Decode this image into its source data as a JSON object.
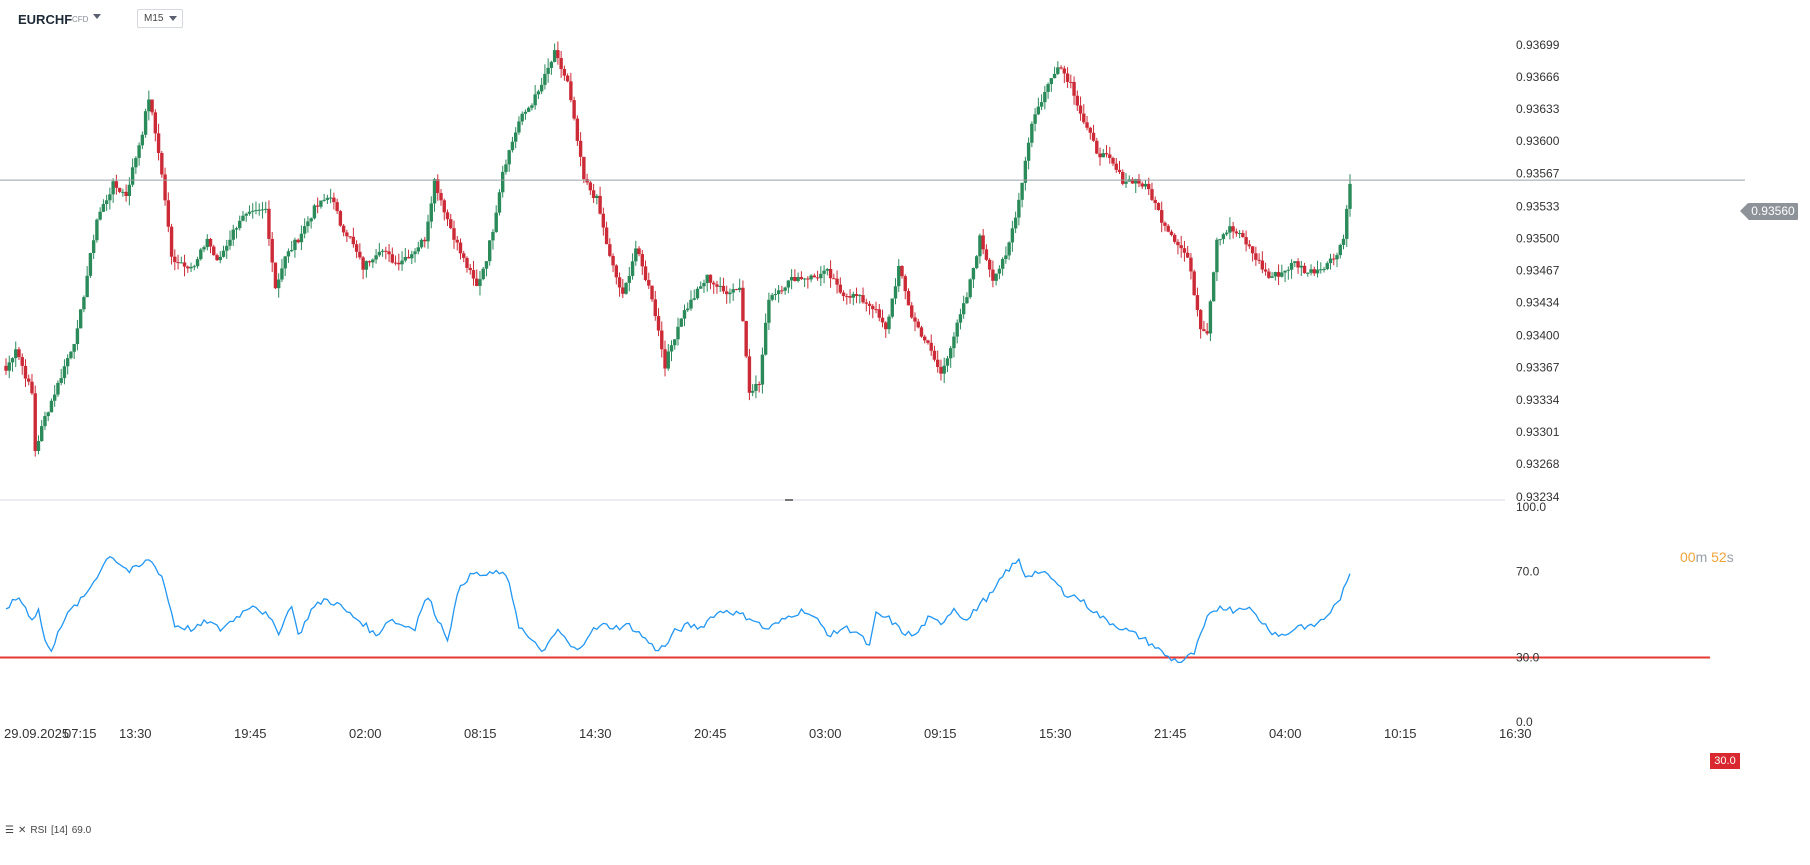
{
  "header": {
    "symbol": "EURCHF",
    "instrument_type": "CFD",
    "timeframe": "M15"
  },
  "price_axis": {
    "ticks": [
      "0.93699",
      "0.93666",
      "0.93633",
      "0.93600",
      "0.93567",
      "0.93533",
      "0.93500",
      "0.93467",
      "0.93434",
      "0.93400",
      "0.93367",
      "0.93334",
      "0.93301",
      "0.93268",
      "0.93234"
    ],
    "current_price": "0.93560"
  },
  "timer": {
    "minutes": "00",
    "m": "m",
    "seconds": "52",
    "s": "s"
  },
  "rsi_axis": {
    "ticks": [
      "100.0",
      "70.0",
      "30.0",
      "0.0"
    ]
  },
  "rsi_legend": {
    "name": "RSI",
    "params": "[14]",
    "value": "69.0"
  },
  "rsi_level_tag": "30.0",
  "time_axis": {
    "labels": [
      "29.09.2025",
      "07:15",
      "13:30",
      "19:45",
      "02:00",
      "08:15",
      "14:30",
      "20:45",
      "03:00",
      "09:15",
      "15:30",
      "21:45",
      "04:00",
      "10:15",
      "16:30"
    ]
  },
  "colors": {
    "up": "#2a8a5a",
    "down": "#cc2a36",
    "rsi_line": "#2196f3",
    "rsi_level": "#e53935",
    "price_line": "#9aa0a6"
  },
  "chart_data": [
    {
      "type": "candlestick",
      "symbol": "EURCHF",
      "timeframe": "M15",
      "y_ticks": [
        0.93699,
        0.93666,
        0.93633,
        0.936,
        0.93567,
        0.93533,
        0.935,
        0.93467,
        0.93434,
        0.934,
        0.93367,
        0.93334,
        0.93301,
        0.93268,
        0.93234
      ],
      "ylim": [
        0.93234,
        0.93715
      ],
      "current_price": 0.9356,
      "x_start": "29.09.2025 07:15",
      "anchors": [
        [
          0,
          0.93364
        ],
        [
          3,
          0.93388
        ],
        [
          8,
          0.9334
        ],
        [
          9,
          0.93282
        ],
        [
          12,
          0.93316
        ],
        [
          16,
          0.9335
        ],
        [
          22,
          0.93404
        ],
        [
          28,
          0.9352
        ],
        [
          33,
          0.93555
        ],
        [
          37,
          0.93545
        ],
        [
          42,
          0.9361
        ],
        [
          44,
          0.93645
        ],
        [
          47,
          0.9359
        ],
        [
          49,
          0.9354
        ],
        [
          51,
          0.9348
        ],
        [
          58,
          0.9347
        ],
        [
          62,
          0.935
        ],
        [
          65,
          0.93475
        ],
        [
          72,
          0.9352
        ],
        [
          80,
          0.9353
        ],
        [
          83,
          0.9345
        ],
        [
          86,
          0.9348
        ],
        [
          90,
          0.935
        ],
        [
          95,
          0.9353
        ],
        [
          100,
          0.93545
        ],
        [
          103,
          0.93515
        ],
        [
          106,
          0.935
        ],
        [
          110,
          0.9347
        ],
        [
          115,
          0.9349
        ],
        [
          120,
          0.93475
        ],
        [
          125,
          0.93485
        ],
        [
          129,
          0.935
        ],
        [
          132,
          0.9356
        ],
        [
          136,
          0.9352
        ],
        [
          140,
          0.93485
        ],
        [
          145,
          0.9345
        ],
        [
          148,
          0.9348
        ],
        [
          150,
          0.9351
        ],
        [
          153,
          0.9357
        ],
        [
          158,
          0.9362
        ],
        [
          164,
          0.9365
        ],
        [
          169,
          0.9369
        ],
        [
          173,
          0.9366
        ],
        [
          178,
          0.9356
        ],
        [
          182,
          0.9354
        ],
        [
          186,
          0.9348
        ],
        [
          190,
          0.9344
        ],
        [
          194,
          0.9349
        ],
        [
          199,
          0.9344
        ],
        [
          203,
          0.9337
        ],
        [
          208,
          0.9342
        ],
        [
          212,
          0.9344
        ],
        [
          216,
          0.9346
        ],
        [
          221,
          0.93445
        ],
        [
          226,
          0.9345
        ],
        [
          229,
          0.93345
        ],
        [
          232,
          0.9335
        ],
        [
          235,
          0.9344
        ],
        [
          239,
          0.9345
        ],
        [
          243,
          0.9346
        ],
        [
          249,
          0.9346
        ],
        [
          253,
          0.93465
        ],
        [
          257,
          0.93445
        ],
        [
          262,
          0.9344
        ],
        [
          267,
          0.9343
        ],
        [
          271,
          0.93405
        ],
        [
          275,
          0.9347
        ],
        [
          279,
          0.9342
        ],
        [
          284,
          0.9339
        ],
        [
          288,
          0.9336
        ],
        [
          292,
          0.934
        ],
        [
          296,
          0.9344
        ],
        [
          300,
          0.935
        ],
        [
          304,
          0.9346
        ],
        [
          308,
          0.9348
        ],
        [
          312,
          0.9354
        ],
        [
          316,
          0.9362
        ],
        [
          320,
          0.9365
        ],
        [
          324,
          0.9368
        ],
        [
          328,
          0.9366
        ],
        [
          332,
          0.9362
        ],
        [
          336,
          0.9359
        ],
        [
          340,
          0.9358
        ],
        [
          344,
          0.9356
        ],
        [
          348,
          0.9356
        ],
        [
          352,
          0.9355
        ],
        [
          356,
          0.9352
        ],
        [
          360,
          0.935
        ],
        [
          364,
          0.9348
        ],
        [
          368,
          0.9341
        ],
        [
          370,
          0.93405
        ],
        [
          373,
          0.935
        ],
        [
          377,
          0.9351
        ],
        [
          381,
          0.935
        ],
        [
          385,
          0.9348
        ],
        [
          389,
          0.9346
        ],
        [
          393,
          0.93465
        ],
        [
          397,
          0.93475
        ],
        [
          401,
          0.93465
        ],
        [
          405,
          0.9347
        ],
        [
          409,
          0.9348
        ],
        [
          412,
          0.935
        ],
        [
          414,
          0.9356
        ]
      ],
      "bars": 415,
      "note": ""
    },
    {
      "type": "line",
      "title": "",
      "series_name": "RSI",
      "period": 14,
      "last_value": 69.0,
      "ylim": [
        0,
        100
      ],
      "y_ticks": [
        100.0,
        70.0,
        30.0,
        0.0
      ],
      "level": 30.0,
      "anchors": [
        [
          0,
          53
        ],
        [
          4,
          58
        ],
        [
          8,
          48
        ],
        [
          10,
          52
        ],
        [
          12,
          38
        ],
        [
          14,
          32
        ],
        [
          16,
          43
        ],
        [
          20,
          52
        ],
        [
          24,
          58
        ],
        [
          28,
          68
        ],
        [
          32,
          78
        ],
        [
          34,
          75
        ],
        [
          38,
          70
        ],
        [
          42,
          73
        ],
        [
          44,
          76
        ],
        [
          48,
          68
        ],
        [
          52,
          45
        ],
        [
          58,
          43
        ],
        [
          62,
          47
        ],
        [
          66,
          43
        ],
        [
          72,
          50
        ],
        [
          76,
          55
        ],
        [
          80,
          50
        ],
        [
          84,
          42
        ],
        [
          86,
          48
        ],
        [
          88,
          55
        ],
        [
          90,
          40
        ],
        [
          94,
          52
        ],
        [
          98,
          57
        ],
        [
          102,
          55
        ],
        [
          106,
          50
        ],
        [
          110,
          46
        ],
        [
          114,
          40
        ],
        [
          118,
          48
        ],
        [
          122,
          45
        ],
        [
          126,
          44
        ],
        [
          128,
          53
        ],
        [
          130,
          58
        ],
        [
          133,
          48
        ],
        [
          136,
          39
        ],
        [
          140,
          64
        ],
        [
          144,
          69
        ],
        [
          148,
          68
        ],
        [
          152,
          70
        ],
        [
          155,
          65
        ],
        [
          158,
          45
        ],
        [
          162,
          37
        ],
        [
          166,
          33
        ],
        [
          170,
          43
        ],
        [
          174,
          35
        ],
        [
          176,
          33
        ],
        [
          180,
          42
        ],
        [
          184,
          45
        ],
        [
          188,
          44
        ],
        [
          192,
          45
        ],
        [
          196,
          40
        ],
        [
          200,
          34
        ],
        [
          203,
          35
        ],
        [
          206,
          42
        ],
        [
          210,
          45
        ],
        [
          214,
          44
        ],
        [
          218,
          50
        ],
        [
          222,
          52
        ],
        [
          226,
          50
        ],
        [
          230,
          48
        ],
        [
          234,
          43
        ],
        [
          238,
          46
        ],
        [
          242,
          50
        ],
        [
          246,
          52
        ],
        [
          250,
          47
        ],
        [
          254,
          40
        ],
        [
          258,
          44
        ],
        [
          262,
          42
        ],
        [
          266,
          35
        ],
        [
          268,
          50
        ],
        [
          272,
          48
        ],
        [
          276,
          42
        ],
        [
          280,
          40
        ],
        [
          284,
          48
        ],
        [
          288,
          46
        ],
        [
          292,
          53
        ],
        [
          296,
          47
        ],
        [
          300,
          55
        ],
        [
          304,
          60
        ],
        [
          308,
          70
        ],
        [
          312,
          75
        ],
        [
          314,
          68
        ],
        [
          318,
          70
        ],
        [
          322,
          67
        ],
        [
          326,
          60
        ],
        [
          330,
          58
        ],
        [
          334,
          53
        ],
        [
          338,
          48
        ],
        [
          342,
          45
        ],
        [
          346,
          42
        ],
        [
          350,
          39
        ],
        [
          354,
          35
        ],
        [
          358,
          30
        ],
        [
          362,
          28
        ],
        [
          366,
          32
        ],
        [
          370,
          48
        ],
        [
          374,
          54
        ],
        [
          378,
          52
        ],
        [
          382,
          54
        ],
        [
          386,
          48
        ],
        [
          390,
          42
        ],
        [
          394,
          40
        ],
        [
          398,
          45
        ],
        [
          402,
          44
        ],
        [
          406,
          48
        ],
        [
          410,
          55
        ],
        [
          413,
          64
        ],
        [
          414,
          69
        ]
      ]
    }
  ]
}
